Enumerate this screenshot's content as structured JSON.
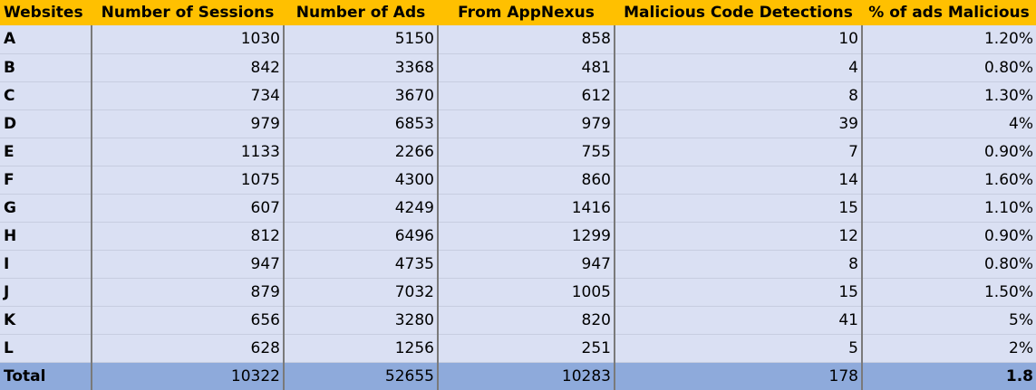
{
  "chart_data": {
    "type": "table",
    "columns": [
      "Websites",
      "Number of Sessions",
      "Number of Ads",
      "From AppNexus",
      "Malicious Code Detections",
      "% of ads Malicious"
    ],
    "rows": [
      [
        "A",
        "1030",
        "5150",
        "858",
        "10",
        "1.20%"
      ],
      [
        "B",
        "842",
        "3368",
        "481",
        "4",
        "0.80%"
      ],
      [
        "C",
        "734",
        "3670",
        "612",
        "8",
        "1.30%"
      ],
      [
        "D",
        "979",
        "6853",
        "979",
        "39",
        "4%"
      ],
      [
        "E",
        "1133",
        "2266",
        "755",
        "7",
        "0.90%"
      ],
      [
        "F",
        "1075",
        "4300",
        "860",
        "14",
        "1.60%"
      ],
      [
        "G",
        "607",
        "4249",
        "1416",
        "15",
        "1.10%"
      ],
      [
        "H",
        "812",
        "6496",
        "1299",
        "12",
        "0.90%"
      ],
      [
        "I",
        "947",
        "4735",
        "947",
        "8",
        "0.80%"
      ],
      [
        "J",
        "879",
        "7032",
        "1005",
        "15",
        "1.50%"
      ],
      [
        "K",
        "656",
        "3280",
        "820",
        "41",
        "5%"
      ],
      [
        "L",
        "628",
        "1256",
        "251",
        "5",
        "2%"
      ]
    ],
    "total": [
      "Total",
      "10322",
      "52655",
      "10283",
      "178",
      "1.8"
    ]
  },
  "colors": {
    "header_bg": "#ffc000",
    "row_bg": "#dae0f3",
    "total_bg": "#8eaadb",
    "divider": "#7a7a7a"
  }
}
